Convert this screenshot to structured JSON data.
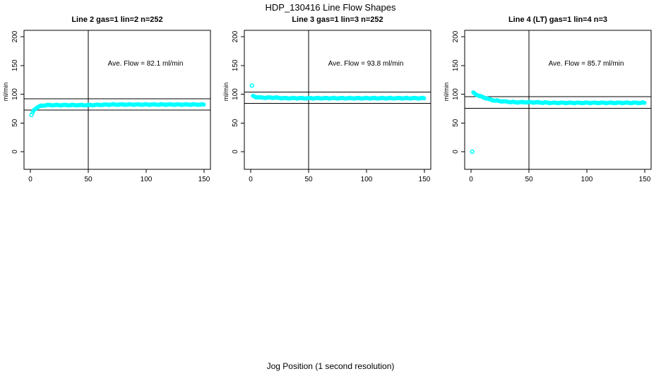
{
  "page": {
    "title": "HDP_130416  Line Flow Shapes",
    "xlabel": "Jog Position (1 second resolution)",
    "background": "#ffffff",
    "axis_color": "#000000"
  },
  "chart_data": [
    {
      "type": "scatter",
      "title": "Line 2 gas=1 lin=2 n=252",
      "annotation": "Ave. Flow =  82.1  ml/min",
      "ave_flow_ml_min": 82.1,
      "n": 252,
      "ylabel": "ml/min",
      "xlim": [
        0,
        150
      ],
      "ylim": [
        0,
        200
      ],
      "x_ticks": [
        0,
        50,
        100,
        150
      ],
      "y_ticks": [
        0,
        50,
        100,
        150,
        200
      ],
      "vline_x": 50,
      "hlines": [
        92.1,
        72.1
      ],
      "point_color": "#00FFFF",
      "grid": false,
      "keypoints": [
        [
          2,
          68
        ],
        [
          3,
          72
        ],
        [
          4,
          74
        ],
        [
          5,
          76
        ],
        [
          6,
          77
        ],
        [
          8,
          79
        ],
        [
          10,
          80
        ],
        [
          14,
          81
        ],
        [
          20,
          81
        ],
        [
          30,
          81
        ],
        [
          50,
          81
        ],
        [
          70,
          82
        ],
        [
          100,
          82
        ],
        [
          130,
          82
        ],
        [
          150,
          82
        ]
      ],
      "outliers": [
        [
          1,
          64
        ]
      ]
    },
    {
      "type": "scatter",
      "title": "Line 3 gas=1 lin=3 n=252",
      "annotation": "Ave. Flow =  93.8  ml/min",
      "ave_flow_ml_min": 93.8,
      "n": 252,
      "ylabel": "ml/min",
      "xlim": [
        0,
        150
      ],
      "ylim": [
        0,
        200
      ],
      "x_ticks": [
        0,
        50,
        100,
        150
      ],
      "y_ticks": [
        0,
        50,
        100,
        150,
        200
      ],
      "vline_x": 50,
      "hlines": [
        103.8,
        83.8
      ],
      "point_color": "#00FFFF",
      "grid": false,
      "keypoints": [
        [
          2,
          97
        ],
        [
          3,
          96
        ],
        [
          4,
          95
        ],
        [
          6,
          95
        ],
        [
          8,
          94
        ],
        [
          12,
          94
        ],
        [
          20,
          94
        ],
        [
          30,
          93
        ],
        [
          50,
          93
        ],
        [
          80,
          93
        ],
        [
          120,
          93
        ],
        [
          150,
          93
        ]
      ],
      "outliers": [
        [
          1,
          115
        ]
      ]
    },
    {
      "type": "scatter",
      "title": "Line 4 (LT) gas=1 lin=4 n=3",
      "annotation": "Ave. Flow =  85.7  ml/min",
      "ave_flow_ml_min": 85.7,
      "n": 3,
      "ylabel": "ml/min",
      "xlim": [
        0,
        150
      ],
      "ylim": [
        0,
        200
      ],
      "x_ticks": [
        0,
        50,
        100,
        150
      ],
      "y_ticks": [
        0,
        50,
        100,
        150,
        200
      ],
      "vline_x": 50,
      "hlines": [
        95.7,
        75.7
      ],
      "point_color": "#00FFFF",
      "grid": false,
      "keypoints": [
        [
          2,
          103
        ],
        [
          3,
          101
        ],
        [
          5,
          99
        ],
        [
          7,
          97
        ],
        [
          10,
          95
        ],
        [
          13,
          93
        ],
        [
          16,
          91
        ],
        [
          20,
          89
        ],
        [
          25,
          88
        ],
        [
          30,
          87
        ],
        [
          38,
          86
        ],
        [
          50,
          86
        ],
        [
          70,
          85
        ],
        [
          100,
          85
        ],
        [
          150,
          85
        ]
      ],
      "outliers": [
        [
          1,
          0
        ]
      ]
    }
  ]
}
